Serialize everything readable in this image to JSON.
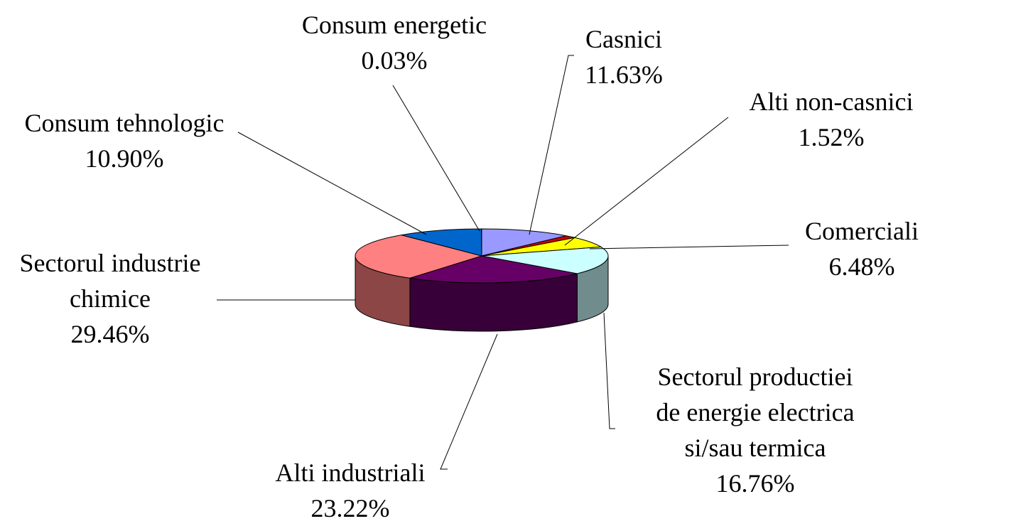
{
  "chart_data": {
    "type": "pie3d",
    "categories": [
      "Casnici",
      "Alti non-casnici",
      "Comerciali",
      "Sectorul productiei\nde energie electrica\nsi/sau termica",
      "Alti industriali",
      "Sectorul industrie\nchimice",
      "Consum tehnologic",
      "Consum energetic"
    ],
    "values": [
      11.63,
      1.52,
      6.48,
      16.76,
      23.22,
      29.46,
      10.9,
      0.03
    ],
    "value_labels": [
      "11.63%",
      "1.52%",
      "6.48%",
      "16.76%",
      "23.22%",
      "29.46%",
      "10.90%",
      "0.03%"
    ],
    "colors": [
      "#9999ff",
      "#cc0000",
      "#ffff00",
      "#ccffff",
      "#660066",
      "#ff8080",
      "#0066cc",
      "#cc99ff"
    ]
  }
}
